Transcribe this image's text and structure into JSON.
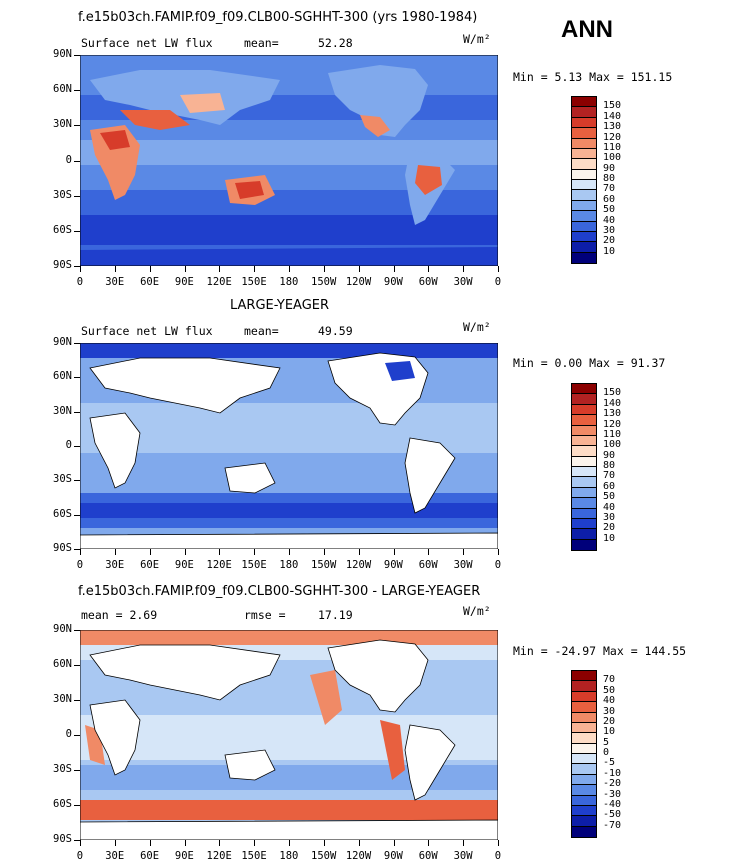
{
  "ann_label": "ANN",
  "lon_ticks": [
    "0",
    "30E",
    "60E",
    "90E",
    "120E",
    "150E",
    "180",
    "150W",
    "120W",
    "90W",
    "60W",
    "30W",
    "0"
  ],
  "lat_ticks": [
    "90N",
    "60N",
    "30N",
    "0",
    "30S",
    "60S",
    "90S"
  ],
  "panels": [
    {
      "title": "f.e15b03ch.FAMIP.f09_f09.CLB00-SGHHT-300 (yrs 1980-1984)",
      "left_label": "Surface net LW flux",
      "stat_label": "mean=",
      "stat_value": "52.28",
      "units": "W/m²",
      "minmax": "Min =    5.13 Max =  151.15",
      "levels": [
        "150",
        "140",
        "130",
        "120",
        "110",
        "100",
        "90",
        "80",
        "70",
        "60",
        "50",
        "40",
        "30",
        "20",
        "10"
      ],
      "colors": [
        "#8b0000",
        "#b22222",
        "#d73c2a",
        "#e8603f",
        "#f08a66",
        "#f8b394",
        "#fddcc6",
        "#fbf4ec",
        "#d6e6f8",
        "#a9c8f2",
        "#80a9ec",
        "#5a89e5",
        "#3a66dc",
        "#1f3fcc",
        "#0d1ea8",
        "#00007a"
      ]
    },
    {
      "title": "LARGE-YEAGER",
      "left_label": "Surface net LW flux",
      "stat_label": "mean=",
      "stat_value": "49.59",
      "units": "W/m²",
      "minmax": "Min =    0.00 Max =   91.37",
      "levels": [
        "150",
        "140",
        "130",
        "120",
        "110",
        "100",
        "90",
        "80",
        "70",
        "60",
        "50",
        "40",
        "30",
        "20",
        "10"
      ],
      "colors": [
        "#8b0000",
        "#b22222",
        "#d73c2a",
        "#e8603f",
        "#f08a66",
        "#f8b394",
        "#fddcc6",
        "#fbf4ec",
        "#d6e6f8",
        "#a9c8f2",
        "#80a9ec",
        "#5a89e5",
        "#3a66dc",
        "#1f3fcc",
        "#0d1ea8",
        "#00007a"
      ]
    },
    {
      "title": "f.e15b03ch.FAMIP.f09_f09.CLB00-SGHHT-300 - LARGE-YEAGER",
      "left_label": "mean =    2.69",
      "stat_label": "rmse =",
      "stat_value": "17.19",
      "units": "W/m²",
      "minmax": "Min = -24.97 Max =  144.55",
      "levels": [
        "70",
        "50",
        "40",
        "30",
        "20",
        "10",
        "5",
        "0",
        "-5",
        "-10",
        "-20",
        "-30",
        "-40",
        "-50",
        "-70"
      ],
      "colors": [
        "#8b0000",
        "#b22222",
        "#d73c2a",
        "#e8603f",
        "#f08a66",
        "#f8b394",
        "#fddcc6",
        "#fbf4ec",
        "#d6e6f8",
        "#a9c8f2",
        "#80a9ec",
        "#5a89e5",
        "#3a66dc",
        "#1f3fcc",
        "#0d1ea8",
        "#00007a"
      ]
    }
  ]
}
